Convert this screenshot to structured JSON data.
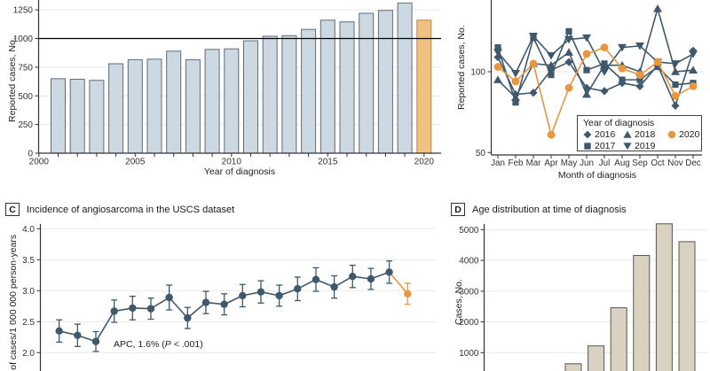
{
  "figure": {
    "panel_a": {
      "ylabel": "Reported cases, No.",
      "xlabel": "Year of diagnosis"
    },
    "panel_b": {
      "ylabel": "Reported cases, No.",
      "xlabel": "Month of diagnosis",
      "legend_title": "Year of diagnosis"
    },
    "panel_c": {
      "letter": "C",
      "title": "Incidence of angiosarcoma in the USCS dataset",
      "ylabel": "No. of cases/1 000 000 person-years",
      "annotation_pre": "APC, 1.6% (",
      "annotation_italic": "P",
      "annotation_post": " < .001)"
    },
    "panel_d": {
      "letter": "D",
      "title": "Age distribution at time of diagnosis",
      "ylabel": "Cases, No."
    }
  },
  "chart_data": [
    {
      "id": "A",
      "type": "bar",
      "title": "",
      "xlabel": "Year of diagnosis",
      "ylabel": "Reported cases, No.",
      "categories": [
        2001,
        2002,
        2003,
        2004,
        2005,
        2006,
        2007,
        2008,
        2009,
        2010,
        2011,
        2012,
        2013,
        2014,
        2015,
        2016,
        2017,
        2018,
        2019,
        2020
      ],
      "values": [
        650,
        645,
        635,
        780,
        815,
        820,
        890,
        815,
        905,
        910,
        980,
        1020,
        1025,
        1080,
        1160,
        1145,
        1220,
        1245,
        1310,
        1160
      ],
      "highlight_last_bar": true,
      "y_ticks": [
        0,
        250,
        500,
        750,
        1000,
        1250
      ],
      "y_tick_labels": [
        "0",
        "250",
        "500",
        "750",
        "1000",
        "1250"
      ],
      "x_tick_labels": [
        "2000",
        "2005",
        "2010",
        "2015",
        "2020"
      ],
      "reference_line": 1000,
      "ylim_visible": [
        0,
        1335
      ],
      "grid": "on"
    },
    {
      "id": "B",
      "type": "line",
      "xlabel": "Month of diagnosis",
      "ylabel": "Reported cases, No.",
      "categories": [
        "Jan",
        "Feb",
        "Mar",
        "Apr",
        "May",
        "Jun",
        "Jul",
        "Aug",
        "Sep",
        "Oct",
        "Nov",
        "Dec"
      ],
      "y_ticks": [
        50,
        100
      ],
      "y_tick_labels": [
        "50",
        "100"
      ],
      "ylim_visible": [
        50,
        144
      ],
      "legend_title": "Year of diagnosis",
      "legend_position": "bottom-right-box",
      "series": [
        {
          "name": "2016",
          "marker": "diamond",
          "values": [
            109,
            86,
            87,
            101,
            106,
            90,
            88,
            93,
            91,
            104,
            79,
            113
          ]
        },
        {
          "name": "2017",
          "marker": "square",
          "values": [
            115,
            81,
            121,
            98,
            125,
            101,
            105,
            95,
            95,
            103,
            92,
            93
          ]
        },
        {
          "name": "2018",
          "marker": "triangle-up",
          "values": [
            95,
            84,
            105,
            104,
            112,
            86,
            104,
            104,
            100,
            139,
            100,
            101
          ]
        },
        {
          "name": "2019",
          "marker": "triangle-down",
          "values": [
            112,
            99,
            122,
            110,
            120,
            121,
            100,
            115,
            116,
            106,
            105,
            111
          ]
        },
        {
          "name": "2020",
          "marker": "circle",
          "color": "orange",
          "values": [
            103,
            94,
            105,
            61,
            90,
            111,
            115,
            102,
            98,
            106,
            85,
            91
          ]
        }
      ]
    },
    {
      "id": "C",
      "type": "line-errorbar",
      "title": "Incidence of angiosarcoma in the USCS dataset",
      "ylabel": "No. of cases/1 000 000 person-years",
      "x": [
        2001,
        2002,
        2003,
        2004,
        2005,
        2006,
        2007,
        2008,
        2009,
        2010,
        2011,
        2012,
        2013,
        2014,
        2015,
        2016,
        2017,
        2018,
        2019,
        2020
      ],
      "values": [
        2.35,
        2.28,
        2.18,
        2.67,
        2.72,
        2.71,
        2.89,
        2.56,
        2.81,
        2.78,
        2.92,
        2.98,
        2.92,
        3.03,
        3.18,
        3.06,
        3.23,
        3.19,
        3.3,
        2.95
      ],
      "errors": [
        0.18,
        0.18,
        0.16,
        0.18,
        0.19,
        0.17,
        0.2,
        0.17,
        0.18,
        0.17,
        0.18,
        0.18,
        0.17,
        0.19,
        0.19,
        0.18,
        0.18,
        0.17,
        0.18,
        0.17
      ],
      "y_ticks": [
        2.0,
        2.5,
        3.0,
        3.5,
        4.0
      ],
      "y_tick_labels": [
        "2.0",
        "2.5",
        "3.0",
        "3.5",
        "4.0"
      ],
      "annotation": "APC, 1.6% (P < .001)",
      "last_point_color": "orange",
      "x_axis_visible": false,
      "grid": "on"
    },
    {
      "id": "D",
      "type": "bar",
      "title": "Age distribution at time of diagnosis",
      "ylabel": "Cases, No.",
      "values": [
        640,
        1220,
        2460,
        4160,
        5190,
        4610
      ],
      "y_ticks": [
        1000,
        2000,
        3000,
        4000,
        5000
      ],
      "y_tick_labels": [
        "1000",
        "2000",
        "3000",
        "4000",
        "5000"
      ],
      "x_axis_labels_cropped": true,
      "grid": "on"
    }
  ],
  "colors": {
    "dark_series": "#40586b",
    "orange": "#e8973e",
    "bar_fill": "#ccd9e2",
    "bar_border": "#616d76",
    "orange_bar_fill": "#f1c180",
    "orange_bar_border": "#bd853e",
    "beige_bar_fill": "#d9d2c2",
    "beige_bar_border": "#55564f",
    "grid": "#e9e9e9",
    "axis": "#333333",
    "reference_line": "#000000",
    "tick_text": "#333333"
  }
}
